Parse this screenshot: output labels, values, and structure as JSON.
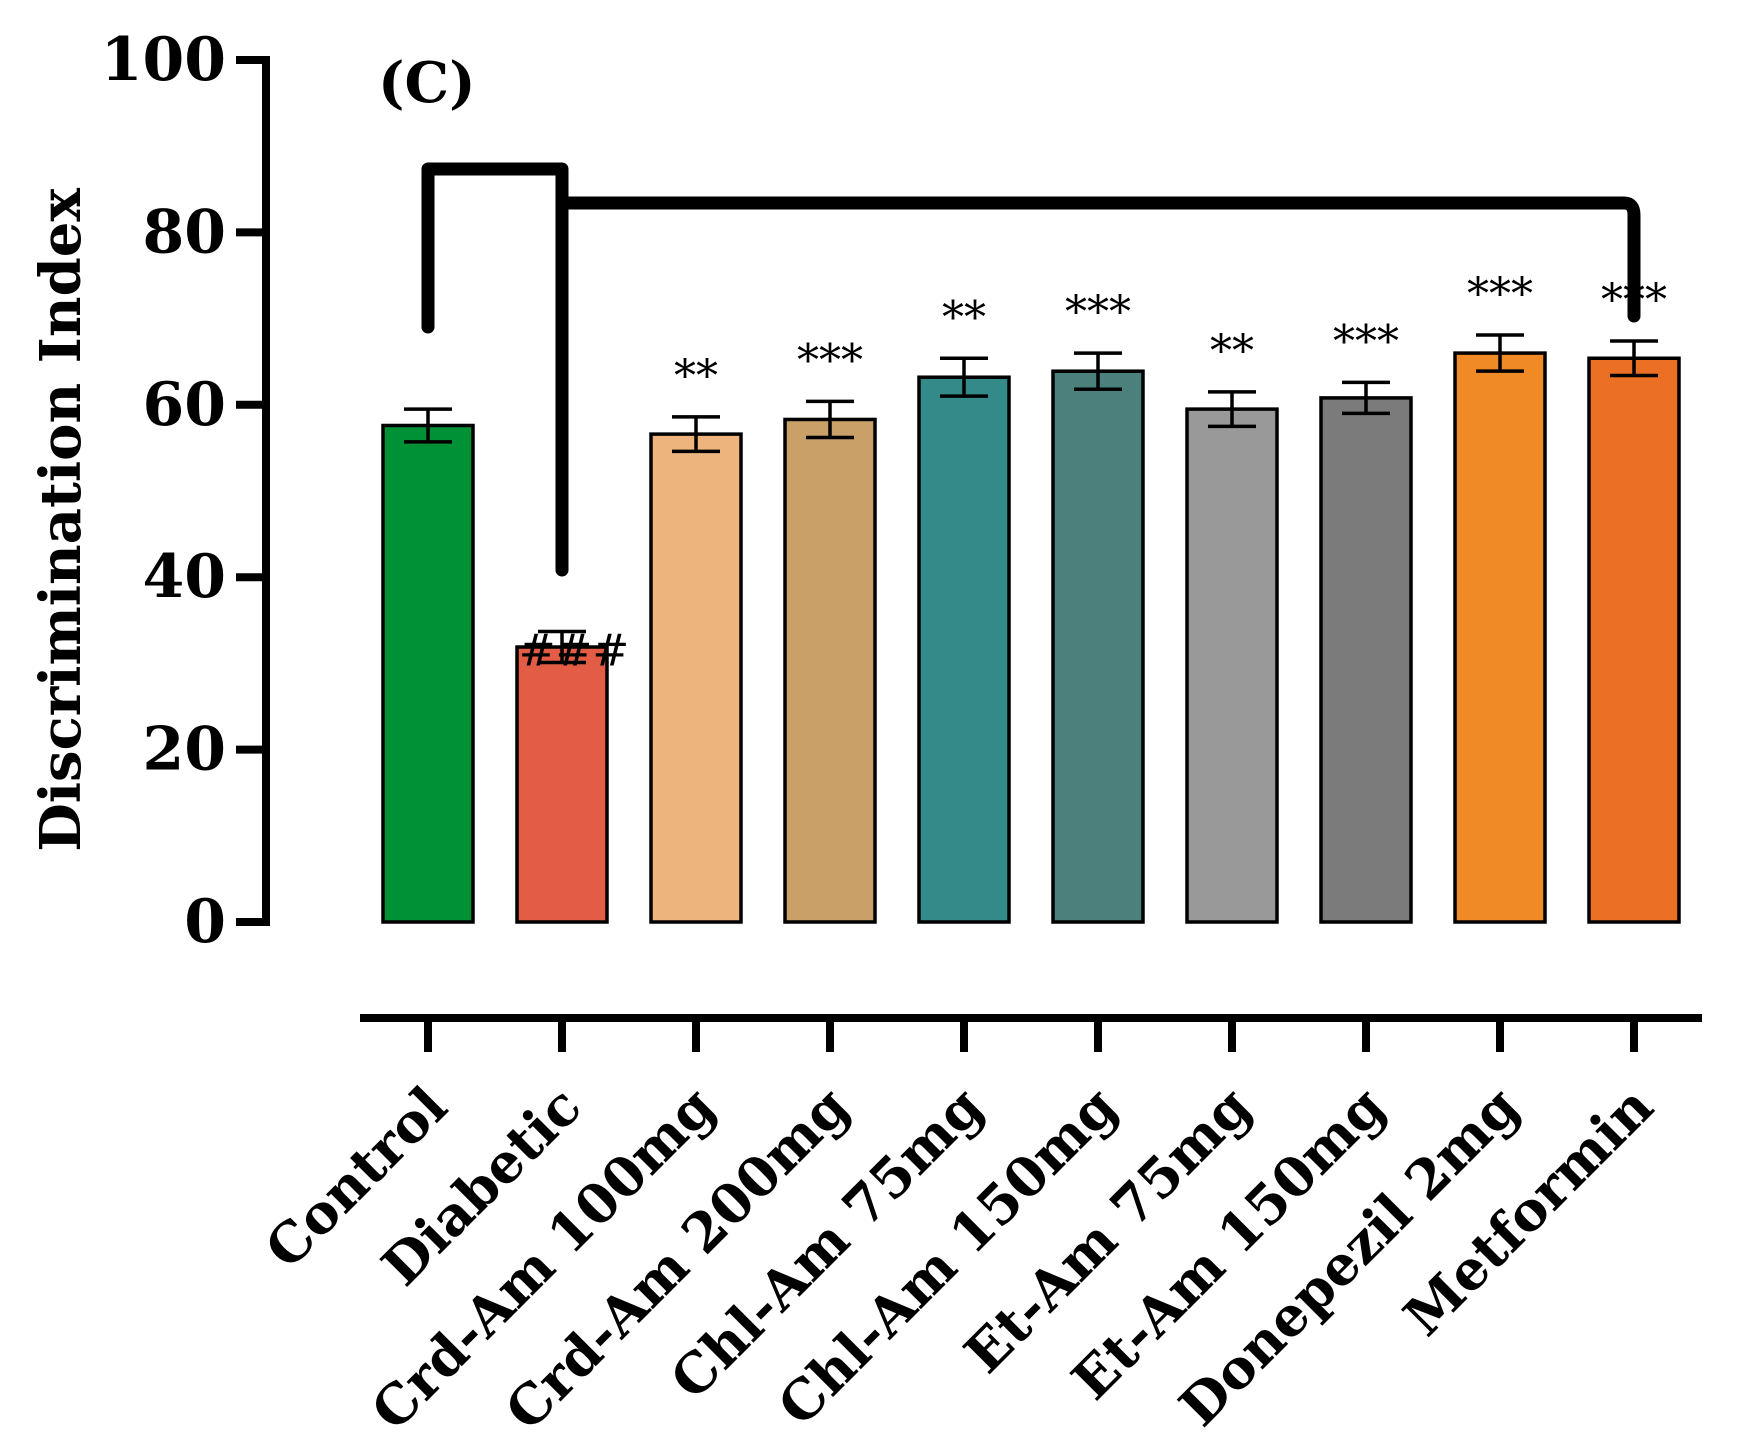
{
  "chart_data": {
    "type": "bar",
    "panel_label": "(C)",
    "title": "",
    "xlabel": "",
    "ylabel": "Discrimination Index",
    "ylim": [
      0,
      100
    ],
    "yticks": [
      0,
      20,
      40,
      60,
      80,
      100
    ],
    "grid": false,
    "categories": [
      "Control",
      "Diabetic",
      "Crd-Am 100mg",
      "Crd-Am 200mg",
      "Chl-Am 75mg",
      "Chl-Am 150mg",
      "Et-Am 75mg",
      "Et-Am 150mg",
      "Donepezil 2mg",
      "Metformin"
    ],
    "values": [
      57.6,
      31.9,
      56.6,
      58.3,
      63.2,
      63.9,
      59.5,
      60.8,
      66.0,
      65.4
    ],
    "errors": [
      1.9,
      1.8,
      2.0,
      2.1,
      2.2,
      2.1,
      2.0,
      1.8,
      2.1,
      2.0
    ],
    "colors": [
      "#009036",
      "#e35c45",
      "#edb47d",
      "#c8a068",
      "#348a89",
      "#4b807c",
      "#989998",
      "#7a7b7a",
      "#f08a24",
      "#ec7024"
    ],
    "annotations": [
      "",
      "###",
      "**",
      "***",
      "**",
      "***",
      "**",
      "***",
      "***",
      "***"
    ],
    "comparison_brackets": [
      {
        "from": "Control",
        "to": "Diabetic"
      },
      {
        "from": "Diabetic",
        "to": "Metformin"
      }
    ]
  }
}
